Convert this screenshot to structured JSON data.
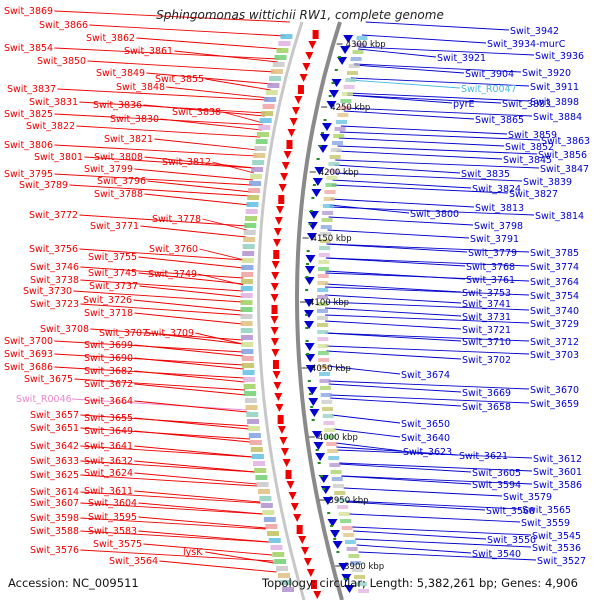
{
  "title": "Sphingomonas wittichii RW1, complete genome",
  "footer": {
    "accession": "Accession: NC_009511",
    "topology": "Topology: circular; Length: 5,382,261 bp; Genes: 4,906"
  },
  "colors": {
    "forward": "#ee0000",
    "reverse": "#0000cc",
    "rna": "#ee88cc",
    "rna_right": "#44bbdd",
    "backbone": "#777777",
    "tick": "#228822"
  },
  "ticks": [
    "4300 kbp",
    "4250 kbp",
    "4200 kbp",
    "4150 kbp",
    "4100 kbp",
    "4050 kbp",
    "4000 kbp",
    "3950 kbp",
    "3900 kbp"
  ],
  "left_labels": [
    "Swit_3869",
    "Swit_3866",
    "Swit_3862",
    "Swit_3854",
    "Swit_3861",
    "Swit_3850",
    "Swit_3849",
    "Swit_3855",
    "Swit_3848",
    "Swit_3837",
    "Swit_3831",
    "Swit_3836",
    "Swit_3838",
    "Swit_3825",
    "Swit_3830",
    "Swit_3822",
    "Swit_3821",
    "Swit_3806",
    "Swit_3801",
    "Swit_3808",
    "Swit_3812",
    "Swit_3799",
    "Swit_3795",
    "Swit_3796",
    "Swit_3789",
    "Swit_3788",
    "Swit_3778",
    "Swit_3772",
    "Swit_3771",
    "Swit_3760",
    "Swit_3756",
    "Swit_3755",
    "Swit_3746",
    "Swit_3745",
    "Swit_3749",
    "Swit_3738",
    "Swit_3737",
    "Swit_3730",
    "Swit_3726",
    "Swit_3723",
    "Swit_3718",
    "Swit_3708",
    "Swit_3707",
    "Swit_3709",
    "Swit_3700",
    "Swit_3699",
    "Swit_3693",
    "Swit_3690",
    "Swit_3686",
    "Swit_3682",
    "Swit_3675",
    "Swit_3672",
    "Swit_R0046",
    "Swit_3664",
    "Swit_3657",
    "Swit_3655",
    "Swit_3651",
    "Swit_3649",
    "Swit_3642",
    "Swit_3641",
    "Swit_3633",
    "Swit_3632",
    "Swit_3625",
    "Swit_3624",
    "Swit_3614",
    "Swit_3611",
    "Swit_3607",
    "Swit_3604",
    "Swit_3598",
    "Swit_3595",
    "Swit_3588",
    "Swit_3583",
    "Swit_3576",
    "Swit_3575",
    "lysK",
    "Swit_3564"
  ],
  "right_labels": [
    "Swit_3942",
    "Swit_3934-murC",
    "Swit_3921",
    "Swit_3936",
    "Swit_3920",
    "Swit_3904",
    "Swit_3911",
    "Swit_R0047",
    "pyrE",
    "Swit_3883",
    "Swit_3898",
    "Swit_3865",
    "Swit_3884",
    "Swit_3859",
    "Swit_3863",
    "Swit_3852",
    "Swit_3856",
    "Swit_3845",
    "Swit_3847",
    "Swit_3835",
    "Swit_3839",
    "Swit_3824",
    "Swit_3827",
    "Swit_3813",
    "Swit_3800",
    "Swit_3814",
    "Swit_3798",
    "Swit_3791",
    "Swit_3779",
    "Swit_3785",
    "Swit_3768",
    "Swit_3774",
    "Swit_3761",
    "Swit_3764",
    "Swit_3753",
    "Swit_3754",
    "Swit_3741",
    "Swit_3740",
    "Swit_3731",
    "Swit_3729",
    "Swit_3721",
    "Swit_3710",
    "Swit_3712",
    "Swit_3702",
    "Swit_3703",
    "Swit_3674",
    "Swit_3669",
    "Swit_3670",
    "Swit_3658",
    "Swit_3659",
    "Swit_3650",
    "Swit_3640",
    "Swit_3623",
    "Swit_3621",
    "Swit_3612",
    "Swit_3605",
    "Swit_3601",
    "Swit_3594",
    "Swit_3586",
    "Swit_3579",
    "Swit_3568",
    "Swit_3565",
    "Swit_3559",
    "Swit_3550",
    "Swit_3545",
    "Swit_3536",
    "Swit_3540",
    "Swit_3527"
  ]
}
